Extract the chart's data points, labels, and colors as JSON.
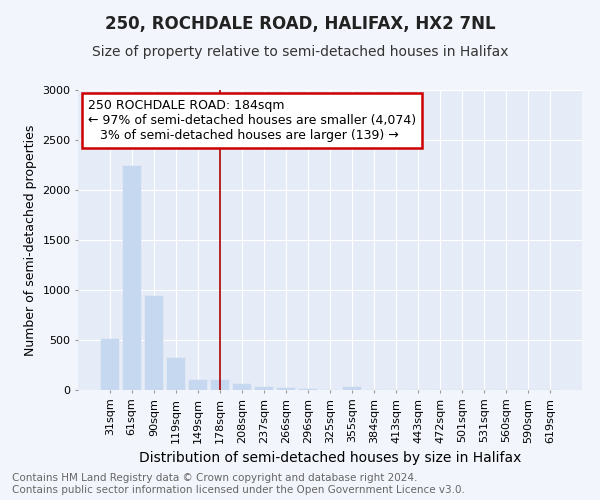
{
  "title": "250, ROCHDALE ROAD, HALIFAX, HX2 7NL",
  "subtitle": "Size of property relative to semi-detached houses in Halifax",
  "xlabel": "Distribution of semi-detached houses by size in Halifax",
  "ylabel": "Number of semi-detached properties",
  "categories": [
    "31sqm",
    "61sqm",
    "90sqm",
    "119sqm",
    "149sqm",
    "178sqm",
    "208sqm",
    "237sqm",
    "266sqm",
    "296sqm",
    "325sqm",
    "355sqm",
    "384sqm",
    "413sqm",
    "443sqm",
    "472sqm",
    "501sqm",
    "531sqm",
    "560sqm",
    "590sqm",
    "619sqm"
  ],
  "values": [
    510,
    2240,
    940,
    320,
    100,
    100,
    60,
    30,
    20,
    10,
    5,
    30,
    0,
    0,
    0,
    0,
    0,
    0,
    0,
    0,
    0
  ],
  "bar_color": "#c5d8ef",
  "bar_edge_color": "#c5d8ef",
  "vline_x_index": 5,
  "vline_color": "#aa0000",
  "annotation_line1": "250 ROCHDALE ROAD: 184sqm",
  "annotation_line2": "← 97% of semi-detached houses are smaller (4,074)",
  "annotation_line3": "   3% of semi-detached houses are larger (139) →",
  "annotation_box_color": "#ffffff",
  "annotation_box_edge_color": "#cc0000",
  "ylim": [
    0,
    3000
  ],
  "yticks": [
    0,
    500,
    1000,
    1500,
    2000,
    2500,
    3000
  ],
  "footer_line1": "Contains HM Land Registry data © Crown copyright and database right 2024.",
  "footer_line2": "Contains public sector information licensed under the Open Government Licence v3.0.",
  "background_color": "#f2f5fb",
  "plot_background_color": "#e6ecf7",
  "grid_color": "#ffffff",
  "title_fontsize": 12,
  "subtitle_fontsize": 10,
  "xlabel_fontsize": 10,
  "ylabel_fontsize": 9,
  "tick_fontsize": 8,
  "annotation_fontsize": 9,
  "footer_fontsize": 7.5
}
